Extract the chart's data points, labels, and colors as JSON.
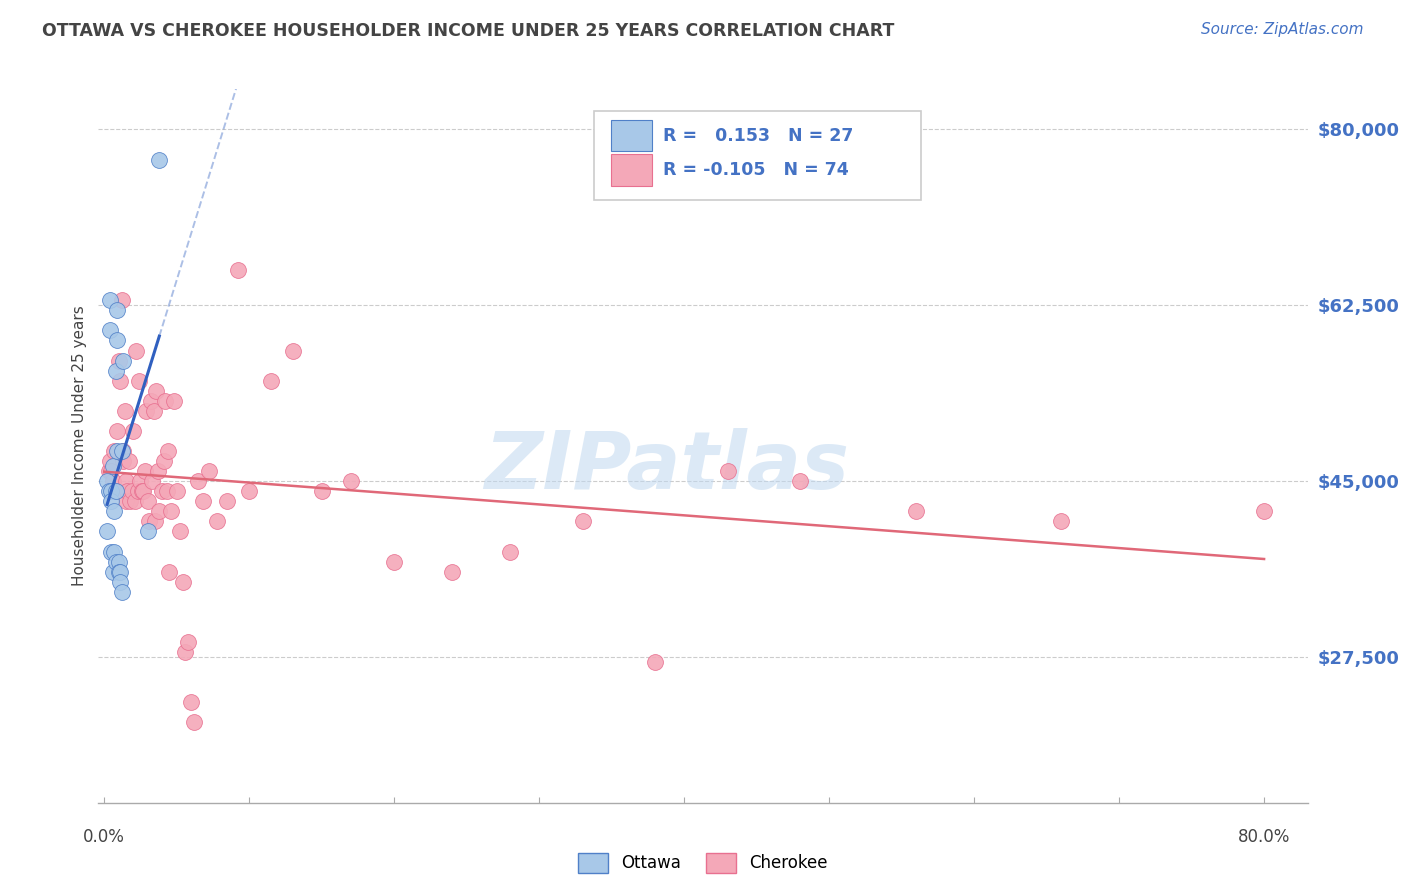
{
  "title": "OTTAWA VS CHEROKEE HOUSEHOLDER INCOME UNDER 25 YEARS CORRELATION CHART",
  "source": "Source: ZipAtlas.com",
  "ylabel": "Householder Income Under 25 years",
  "ytick_labels": [
    "$80,000",
    "$62,500",
    "$45,000",
    "$27,500"
  ],
  "ytick_values": [
    80000,
    62500,
    45000,
    27500
  ],
  "ymin": 13000,
  "ymax": 84000,
  "xmin": -0.004,
  "xmax": 0.83,
  "legend_r_ottawa": "0.153",
  "legend_n_ottawa": "27",
  "legend_r_cherokee": "-0.105",
  "legend_n_cherokee": "74",
  "watermark": "ZIPatlas",
  "ottawa_color": "#a8c8e8",
  "cherokee_color": "#f4a8b8",
  "ottawa_edge_color": "#5080c8",
  "cherokee_edge_color": "#e87090",
  "ottawa_line_color": "#3060c0",
  "cherokee_line_color": "#e06878",
  "label_color": "#4472c4",
  "title_color": "#444444",
  "grid_color": "#cccccc",
  "ottawa_x": [
    0.002,
    0.002,
    0.003,
    0.004,
    0.004,
    0.005,
    0.005,
    0.005,
    0.006,
    0.006,
    0.007,
    0.007,
    0.008,
    0.008,
    0.008,
    0.009,
    0.009,
    0.009,
    0.01,
    0.01,
    0.011,
    0.011,
    0.012,
    0.012,
    0.013,
    0.03,
    0.038
  ],
  "ottawa_y": [
    45000,
    40000,
    44000,
    63000,
    60000,
    44000,
    43000,
    38000,
    46500,
    36000,
    42000,
    38000,
    37000,
    44000,
    56000,
    62000,
    59000,
    48000,
    37000,
    36000,
    36000,
    35000,
    34000,
    48000,
    57000,
    40000,
    77000
  ],
  "cherokee_x": [
    0.003,
    0.004,
    0.005,
    0.006,
    0.007,
    0.008,
    0.009,
    0.01,
    0.011,
    0.012,
    0.013,
    0.013,
    0.014,
    0.015,
    0.015,
    0.016,
    0.017,
    0.018,
    0.019,
    0.02,
    0.021,
    0.022,
    0.023,
    0.024,
    0.025,
    0.026,
    0.027,
    0.028,
    0.029,
    0.03,
    0.031,
    0.032,
    0.033,
    0.034,
    0.035,
    0.036,
    0.037,
    0.038,
    0.04,
    0.041,
    0.042,
    0.043,
    0.044,
    0.045,
    0.046,
    0.048,
    0.05,
    0.052,
    0.054,
    0.056,
    0.058,
    0.06,
    0.062,
    0.065,
    0.068,
    0.072,
    0.078,
    0.085,
    0.092,
    0.1,
    0.115,
    0.13,
    0.15,
    0.17,
    0.2,
    0.24,
    0.28,
    0.33,
    0.38,
    0.43,
    0.48,
    0.56,
    0.66,
    0.8
  ],
  "cherokee_y": [
    46000,
    47000,
    46000,
    45000,
    48000,
    44000,
    50000,
    57000,
    55000,
    63000,
    48000,
    47000,
    52000,
    45000,
    43000,
    44000,
    47000,
    43000,
    44000,
    50000,
    43000,
    58000,
    44000,
    55000,
    45000,
    44000,
    44000,
    46000,
    52000,
    43000,
    41000,
    53000,
    45000,
    52000,
    41000,
    54000,
    46000,
    42000,
    44000,
    47000,
    53000,
    44000,
    48000,
    36000,
    42000,
    53000,
    44000,
    40000,
    35000,
    28000,
    29000,
    23000,
    21000,
    45000,
    43000,
    46000,
    41000,
    43000,
    66000,
    44000,
    55000,
    58000,
    44000,
    45000,
    37000,
    36000,
    38000,
    41000,
    27000,
    46000,
    45000,
    42000,
    41000,
    42000
  ]
}
